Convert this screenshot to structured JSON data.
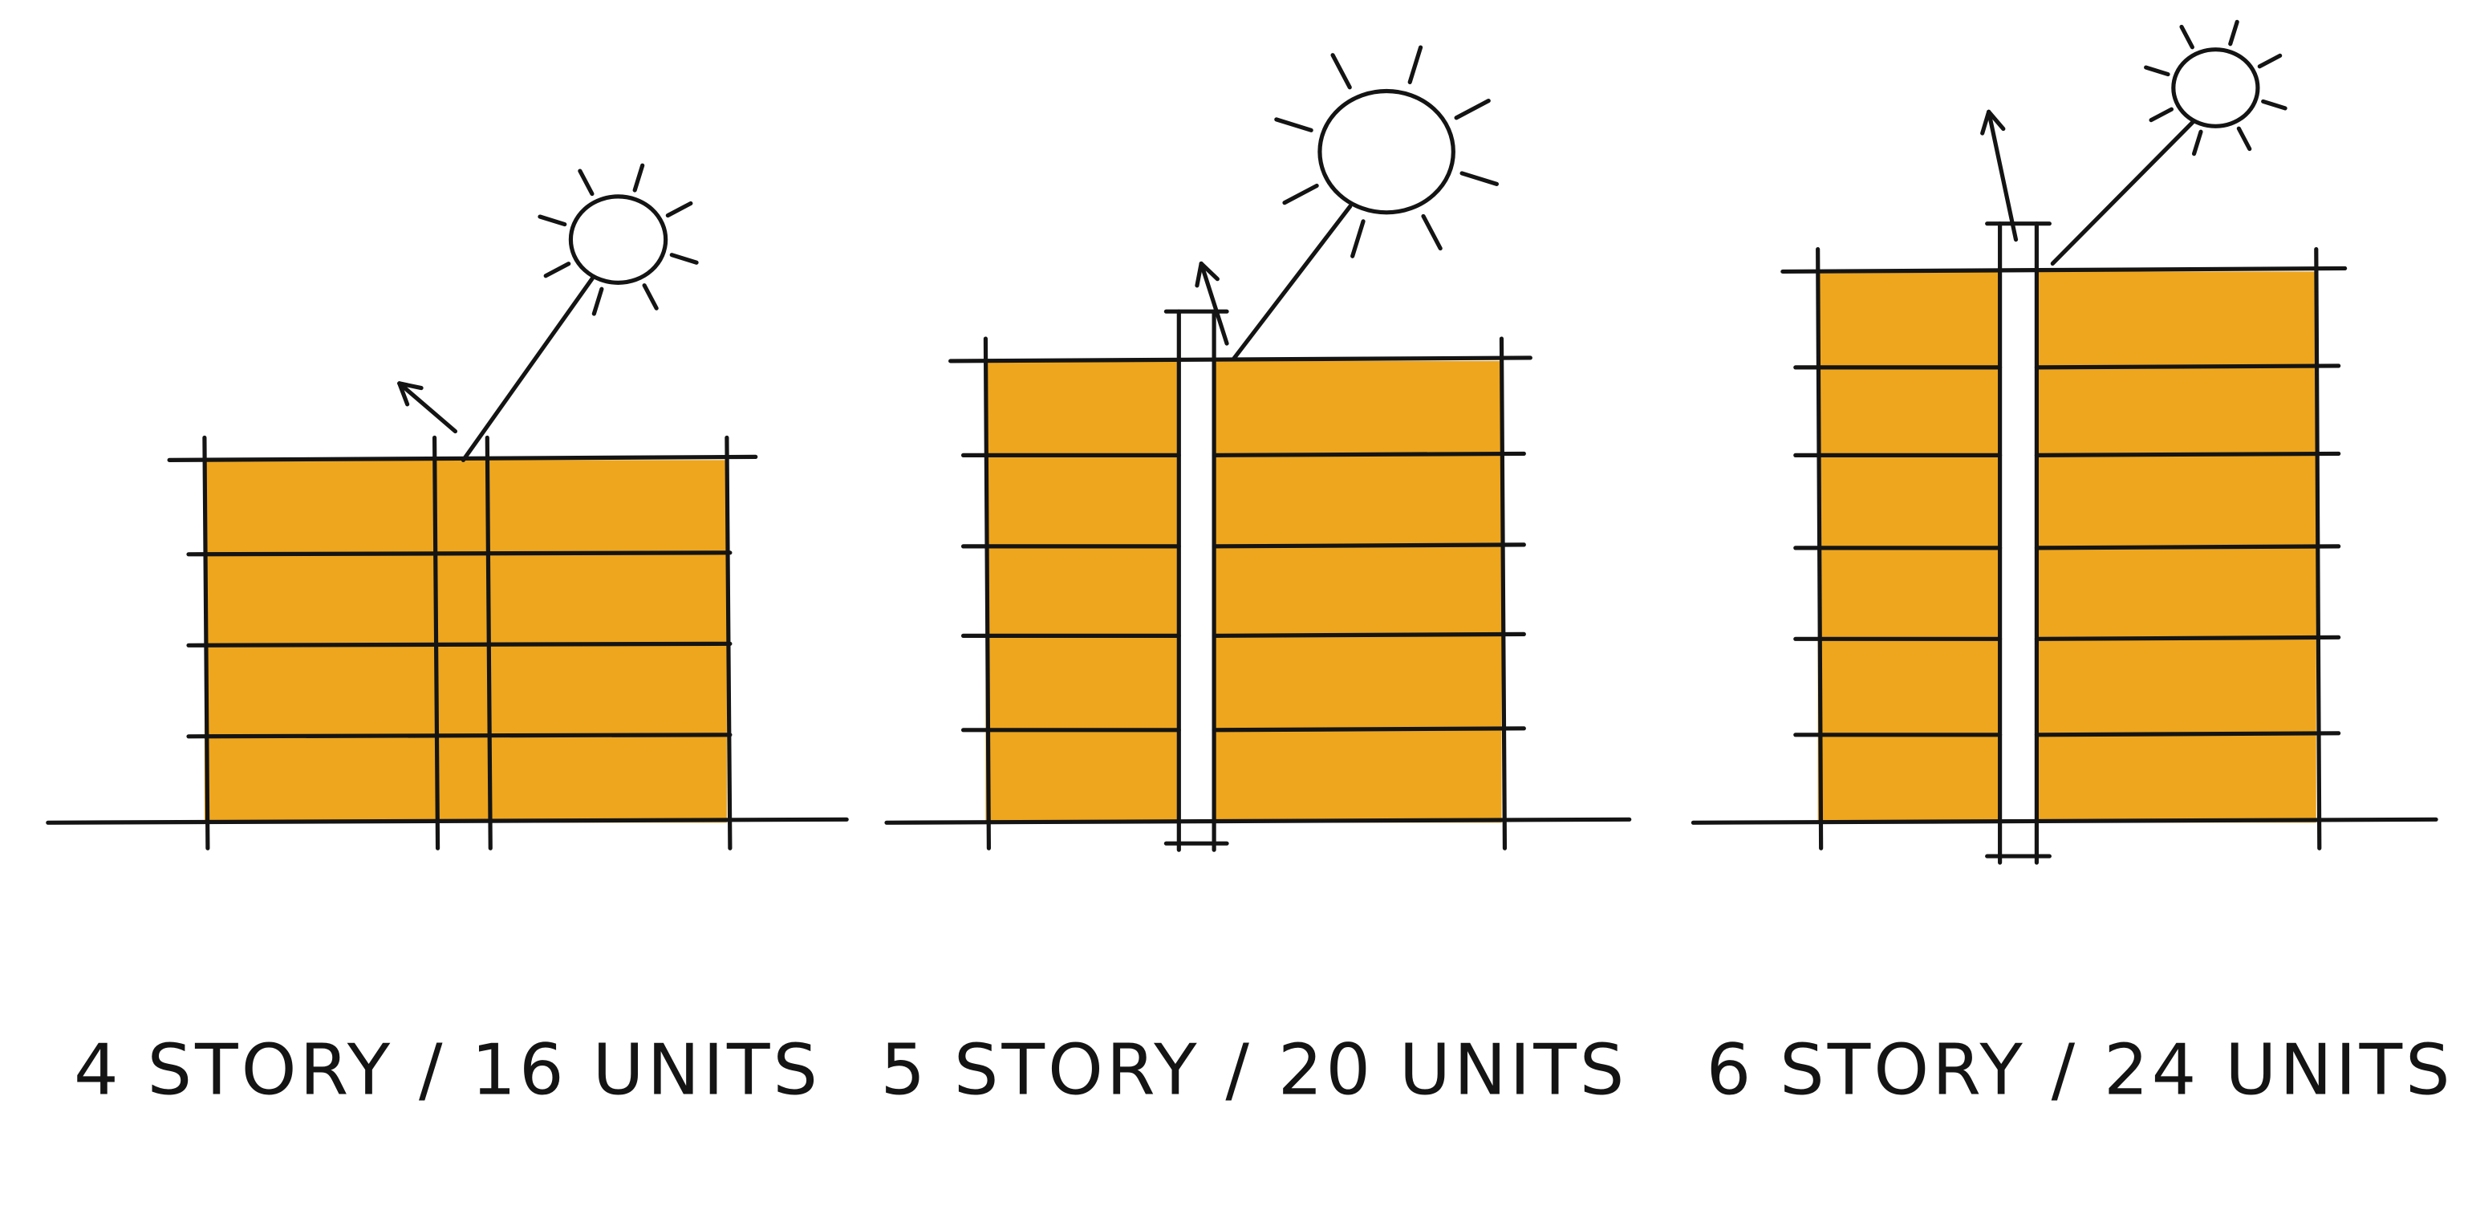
{
  "labels": [
    "4 STORY / 16 UNITS",
    "5 STORY / 20 UNITS",
    "6 STORY / 24 UNITS"
  ]
}
